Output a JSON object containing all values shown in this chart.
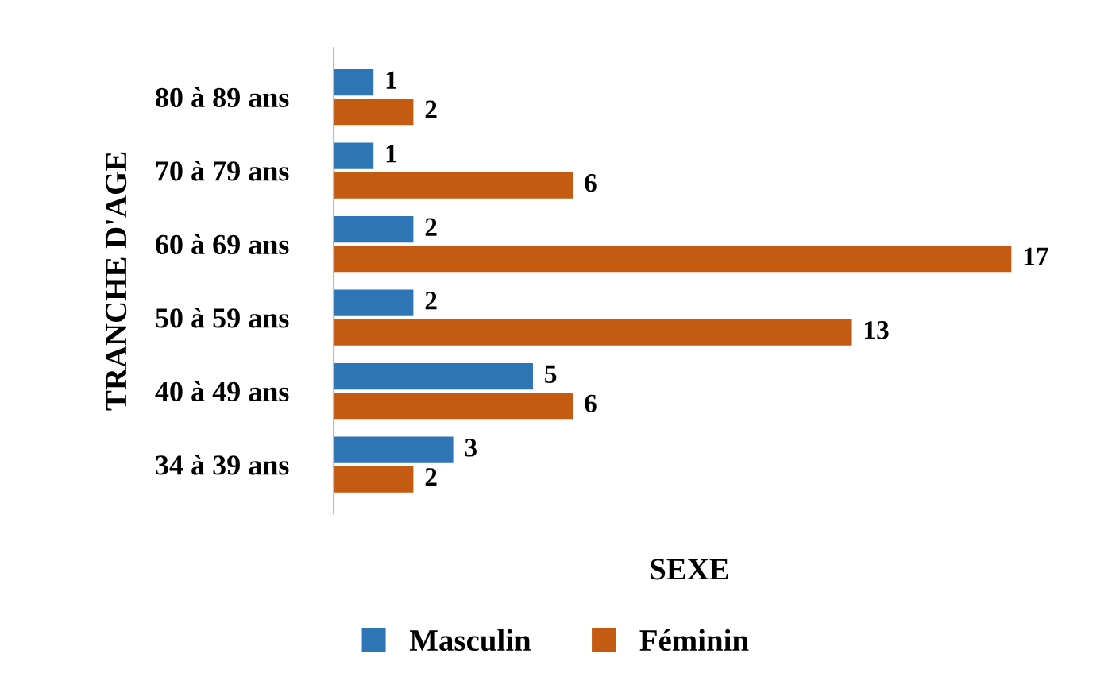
{
  "chart_data": {
    "type": "bar",
    "orientation": "horizontal",
    "xlabel": "SEXE",
    "ylabel": "TRANCHE D'AGE",
    "categories": [
      "80 à 89 ans",
      "70 à 79 ans",
      "60 à 69 ans",
      "50 à 59 ans",
      "40 à 49 ans",
      "34 à 39 ans"
    ],
    "series": [
      {
        "name": "Masculin",
        "color": "#2e75b6",
        "values": [
          1,
          1,
          2,
          2,
          5,
          3
        ]
      },
      {
        "name": "Féminin",
        "color": "#c55a11",
        "values": [
          2,
          6,
          17,
          13,
          6,
          2
        ]
      }
    ],
    "data_labels": true,
    "legend": "bottom",
    "grid": false,
    "tick_labels": "y"
  }
}
